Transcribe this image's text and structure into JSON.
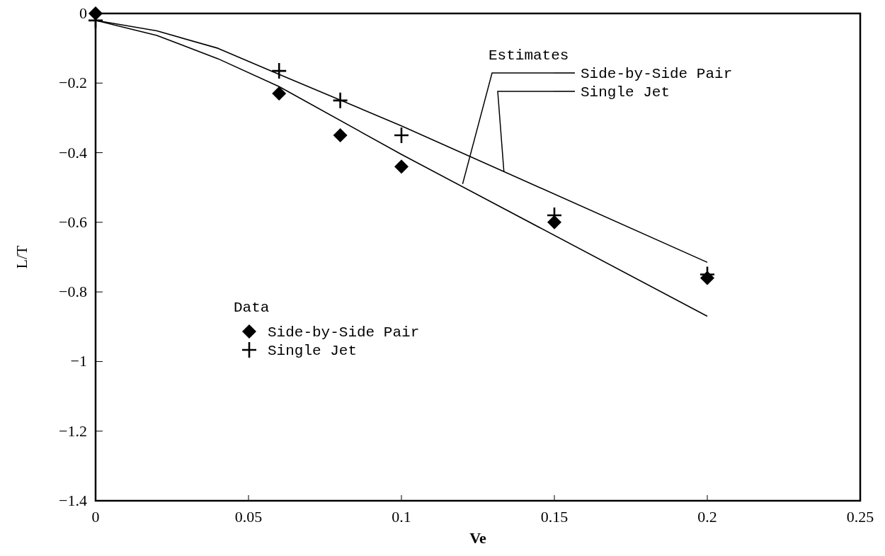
{
  "chart_data": {
    "type": "scatter",
    "xlabel": "Ve",
    "ylabel": "L/T",
    "legend_title": "Data",
    "legend": "left",
    "annotations": [
      {
        "text": "Estimates",
        "x": 0.12,
        "y": -0.49
      }
    ],
    "xlim": [
      0,
      0.25
    ],
    "xticks": [
      0,
      0.05,
      0.1,
      0.15,
      0.2,
      0.25
    ],
    "ylim": [
      -1.4,
      0
    ],
    "yticks": [
      {
        "value": -1.4,
        "label": "−1.4"
      },
      {
        "value": -1.2,
        "label": "−1.2"
      },
      {
        "value": -1,
        "label": "−1"
      },
      {
        "value": -0.8,
        "label": "−0.8"
      },
      {
        "value": -0.6,
        "label": "−0.6"
      },
      {
        "value": -0.4,
        "label": "−0.4"
      },
      {
        "value": -0.2,
        "label": "−0.2"
      },
      0
    ],
    "grid": false,
    "series": [
      {
        "name": "Side-by-Side Pair",
        "color": "#000000",
        "marker": "diamond",
        "x": [
          0,
          0.06,
          0.08,
          0.1,
          0.15,
          0.2
        ],
        "values": [
          0,
          -0.23,
          -0.35,
          -0.44,
          -0.6,
          -0.76
        ]
      },
      {
        "name": "Single Jet",
        "color": "#000000",
        "marker": "cross",
        "x": [
          0,
          0.06,
          0.08,
          0.1,
          0.15,
          0.2
        ],
        "values": [
          -0.02,
          -0.165,
          -0.25,
          -0.35,
          -0.58,
          -0.75
        ]
      },
      {
        "type": "line",
        "name": "Side-by-Side Pair",
        "color": "#000000",
        "line_style": "solid",
        "x": [
          0,
          0.02,
          0.04,
          0.06,
          0.1,
          0.2
        ],
        "values": [
          -0.02,
          -0.063,
          -0.13,
          -0.21,
          -0.405,
          -0.87
        ]
      },
      {
        "type": "line",
        "name": "Single Jet",
        "color": "#000000",
        "line_style": "solid",
        "x": [
          0,
          0.02,
          0.04,
          0.06,
          0.1,
          0.2
        ],
        "values": [
          -0.02,
          -0.05,
          -0.1,
          -0.175,
          -0.323,
          -0.715
        ]
      }
    ]
  }
}
